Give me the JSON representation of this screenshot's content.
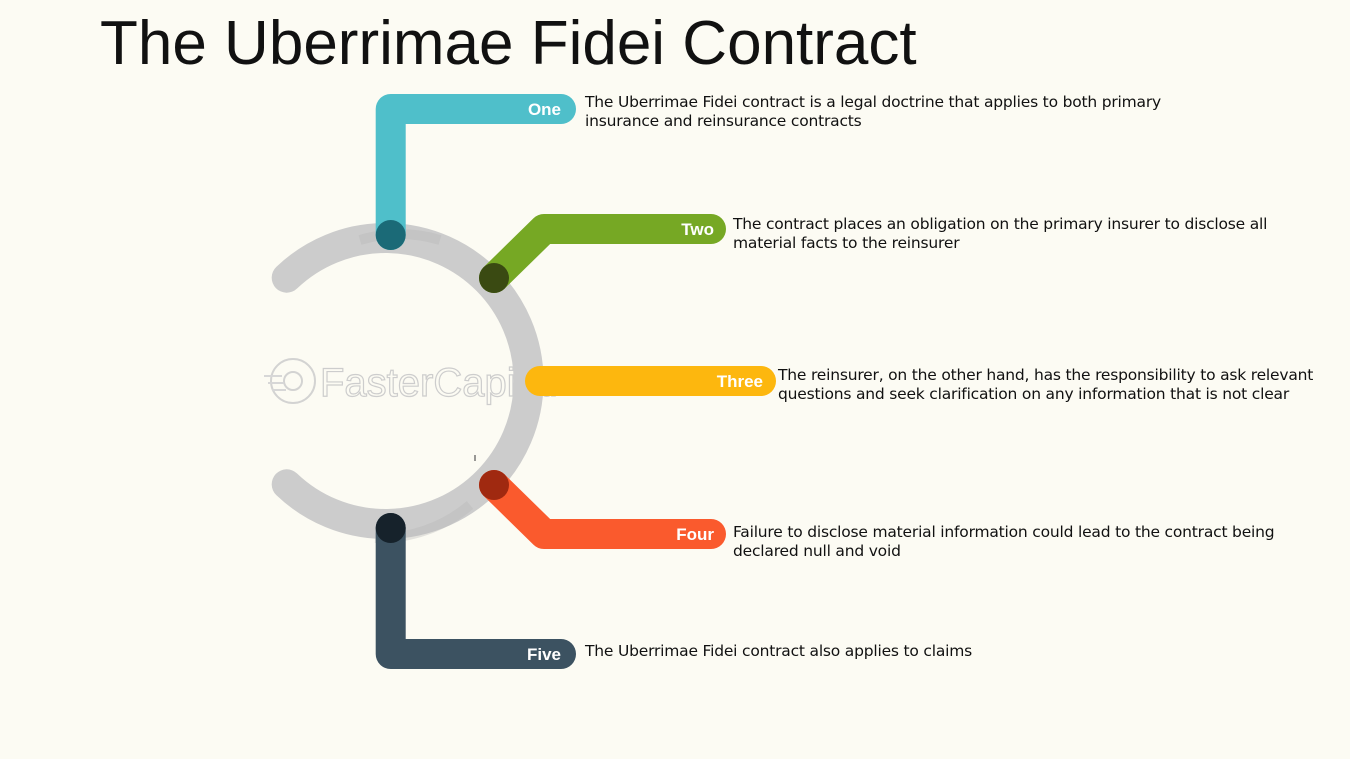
{
  "title": "The Uberrimae Fidei Contract",
  "colors": {
    "one": "#4fbfca",
    "two": "#76a824",
    "three": "#fdb70e",
    "four": "#fa5a2d",
    "five": "#3c5261",
    "ring": "#cccccc"
  },
  "watermark": "FasterCapital",
  "items": [
    {
      "tag": "One",
      "text": "The Uberrimae Fidei contract is a legal doctrine that applies to both primary insurance and reinsurance contracts"
    },
    {
      "tag": "Two",
      "text": "The contract places an obligation on the primary insurer to disclose all material facts to the reinsurer"
    },
    {
      "tag": "Three",
      "text": "The reinsurer, on the other hand, has the responsibility to ask relevant questions and seek clarification on any information that is not clear"
    },
    {
      "tag": "Four",
      "text": "Failure to disclose material information could lead to the contract being declared null and void"
    },
    {
      "tag": "Five",
      "text": "The Uberrimae Fidei contract also applies to claims"
    }
  ]
}
